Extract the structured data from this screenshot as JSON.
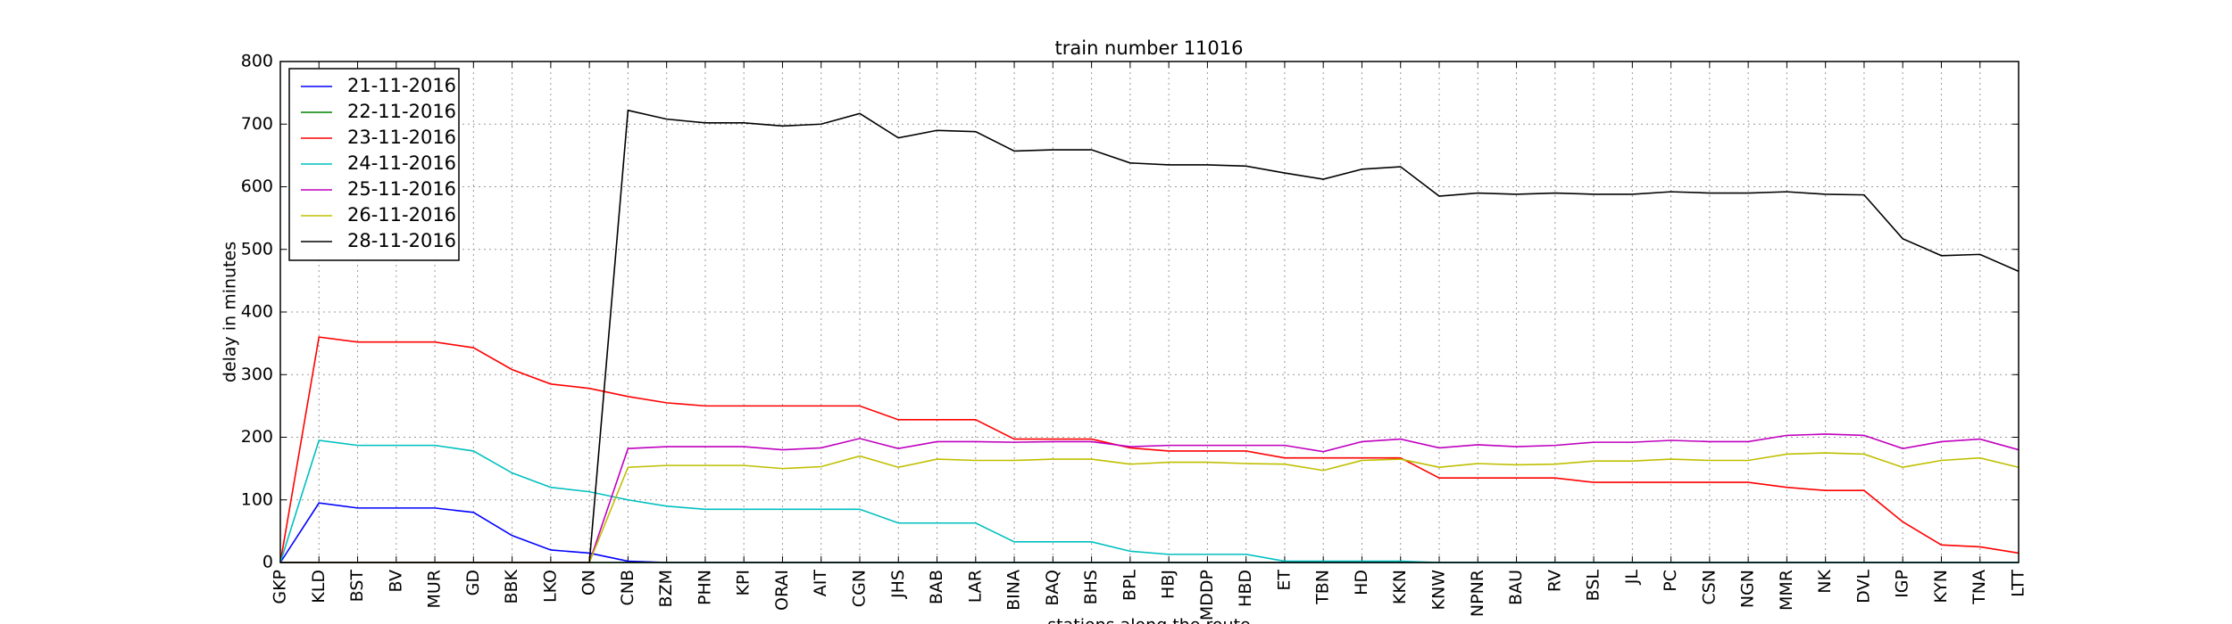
{
  "chart_data": {
    "type": "line",
    "title": "train number 11016",
    "x_label": "stations along the route",
    "y_label": "delay in minutes",
    "categories": [
      "GKP",
      "KLD",
      "BST",
      "BV",
      "MUR",
      "GD",
      "BBK",
      "LKO",
      "ON",
      "CNB",
      "BZM",
      "PHN",
      "KPI",
      "ORAI",
      "AIT",
      "CGN",
      "JHS",
      "BAB",
      "LAR",
      "BINA",
      "BAQ",
      "BHS",
      "BPL",
      "HBJ",
      "MDDP",
      "HBD",
      "ET",
      "TBN",
      "HD",
      "KKN",
      "KNW",
      "NPNR",
      "BAU",
      "RV",
      "BSL",
      "JL",
      "PC",
      "CSN",
      "NGN",
      "MMR",
      "NK",
      "DVL",
      "IGP",
      "KYN",
      "TNA",
      "LTT"
    ],
    "ylim": [
      0,
      800
    ],
    "yticks": [
      0,
      100,
      200,
      300,
      400,
      500,
      600,
      700,
      800
    ],
    "grid": true,
    "legend": "upper-left",
    "series": [
      {
        "name": "21-11-2016",
        "color": "#0000ff",
        "values": [
          0,
          95,
          87,
          87,
          87,
          80,
          43,
          20,
          15,
          2,
          0,
          0,
          0,
          0,
          0,
          0,
          0,
          0,
          0,
          0,
          0,
          0,
          0,
          0,
          0,
          0,
          0,
          0,
          0,
          0,
          0,
          0,
          0,
          0,
          0,
          0,
          0,
          0,
          0,
          0,
          0,
          0,
          0,
          0,
          0,
          0
        ]
      },
      {
        "name": "22-11-2016",
        "color": "#008000",
        "values": [
          0,
          0,
          0,
          0,
          0,
          0,
          0,
          0,
          0,
          0,
          0,
          0,
          0,
          0,
          0,
          0,
          0,
          0,
          0,
          0,
          0,
          0,
          0,
          0,
          0,
          0,
          0,
          0,
          0,
          0,
          0,
          0,
          0,
          0,
          0,
          0,
          0,
          0,
          0,
          0,
          0,
          0,
          0,
          0,
          0,
          0
        ]
      },
      {
        "name": "23-11-2016",
        "color": "#ff0000",
        "values": [
          0,
          360,
          352,
          352,
          352,
          343,
          308,
          285,
          278,
          265,
          255,
          250,
          250,
          250,
          250,
          250,
          228,
          228,
          228,
          197,
          197,
          197,
          183,
          178,
          178,
          178,
          167,
          167,
          167,
          167,
          135,
          135,
          135,
          135,
          128,
          128,
          128,
          128,
          128,
          120,
          115,
          115,
          65,
          28,
          25,
          15
        ]
      },
      {
        "name": "24-11-2016",
        "color": "#00bfbf",
        "values": [
          0,
          195,
          187,
          187,
          187,
          178,
          143,
          120,
          113,
          100,
          90,
          85,
          85,
          85,
          85,
          85,
          63,
          63,
          63,
          33,
          33,
          33,
          18,
          13,
          13,
          13,
          2,
          2,
          2,
          2,
          0,
          0,
          0,
          0,
          0,
          0,
          0,
          0,
          0,
          0,
          0,
          0,
          0,
          0,
          0,
          0
        ]
      },
      {
        "name": "25-11-2016",
        "color": "#bf00bf",
        "values": [
          0,
          0,
          0,
          0,
          0,
          0,
          0,
          0,
          0,
          182,
          185,
          185,
          185,
          180,
          183,
          198,
          182,
          193,
          193,
          192,
          193,
          193,
          185,
          187,
          187,
          187,
          187,
          177,
          193,
          197,
          183,
          188,
          185,
          187,
          192,
          192,
          195,
          193,
          193,
          203,
          205,
          203,
          182,
          193,
          197,
          180
        ]
      },
      {
        "name": "26-11-2016",
        "color": "#bfbf00",
        "values": [
          0,
          0,
          0,
          0,
          0,
          0,
          0,
          0,
          0,
          152,
          155,
          155,
          155,
          150,
          153,
          170,
          152,
          165,
          163,
          163,
          165,
          165,
          157,
          160,
          160,
          158,
          157,
          147,
          163,
          165,
          152,
          158,
          156,
          157,
          162,
          162,
          165,
          163,
          163,
          173,
          175,
          173,
          152,
          163,
          167,
          152
        ]
      },
      {
        "name": "28-11-2016",
        "color": "#000000",
        "values": [
          0,
          0,
          0,
          0,
          0,
          0,
          0,
          0,
          0,
          722,
          708,
          702,
          702,
          697,
          700,
          717,
          678,
          690,
          688,
          657,
          659,
          659,
          638,
          635,
          635,
          633,
          622,
          612,
          628,
          632,
          585,
          590,
          588,
          590,
          588,
          588,
          592,
          590,
          590,
          592,
          588,
          587,
          517,
          490,
          492,
          465
        ]
      }
    ]
  }
}
